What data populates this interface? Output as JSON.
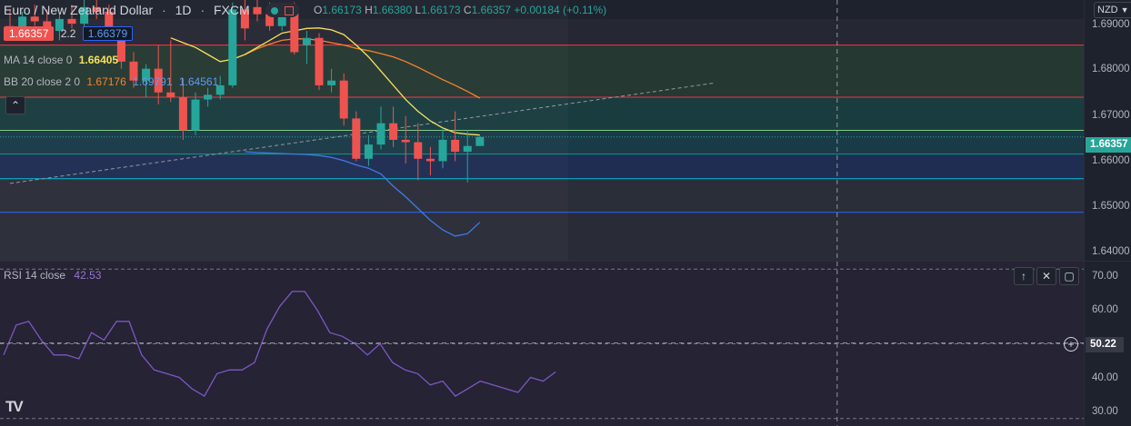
{
  "header": {
    "symbol": "Euro / New Zealand Dollar",
    "interval": "1D",
    "source": "FXCM",
    "ohlc": {
      "open_label": "O",
      "open": "1.66173",
      "high_label": "H",
      "high": "1.66380",
      "low_label": "L",
      "low": "1.66173",
      "close_label": "C",
      "close": "1.66357",
      "change": "+0.00184 (+0.11%)"
    },
    "sell_price": "1.66357",
    "spread": "2.2",
    "buy_price": "1.66379"
  },
  "indicators": {
    "ma": {
      "label": "MA 14 close 0",
      "value": "1.66405"
    },
    "bb": {
      "label": "BB 20 close 2 0",
      "basis": "1.67176",
      "upper": "1.69791",
      "lower": "1.64561"
    },
    "rsi": {
      "label": "RSI 14 close",
      "value": "42.53"
    }
  },
  "axis": {
    "currency": "NZD",
    "price_ticks": [
      "1.69000",
      "1.68000",
      "1.67000",
      "1.66000",
      "1.65000",
      "1.64000"
    ],
    "current_price": "1.66357",
    "rsi_ticks": [
      "70.00",
      "60.00",
      "40.00",
      "30.00"
    ],
    "crosshair_value": "50.22"
  },
  "colors": {
    "up": "#26a69a",
    "down": "#ef5350",
    "ma": "#f7e15b",
    "bb_basis": "#f5832a",
    "bb_lower": "#3c7be6",
    "rsi": "#7e57c2",
    "background": "#1e222d"
  },
  "chart_data": [
    {
      "type": "candlestick",
      "title": "Euro / New Zealand Dollar",
      "ylim": [
        1.6375,
        1.6925
      ],
      "candles": [
        {
          "o": 1.687,
          "h": 1.6905,
          "l": 1.6845,
          "c": 1.6855
        },
        {
          "o": 1.686,
          "h": 1.69,
          "l": 1.684,
          "c": 1.689
        },
        {
          "o": 1.689,
          "h": 1.6915,
          "l": 1.687,
          "c": 1.688
        },
        {
          "o": 1.688,
          "h": 1.6905,
          "l": 1.685,
          "c": 1.686
        },
        {
          "o": 1.686,
          "h": 1.6895,
          "l": 1.684,
          "c": 1.6885
        },
        {
          "o": 1.6885,
          "h": 1.6915,
          "l": 1.6865,
          "c": 1.6875
        },
        {
          "o": 1.6875,
          "h": 1.6925,
          "l": 1.686,
          "c": 1.691
        },
        {
          "o": 1.691,
          "h": 1.6925,
          "l": 1.6885,
          "c": 1.69
        },
        {
          "o": 1.69,
          "h": 1.6915,
          "l": 1.685,
          "c": 1.6865
        },
        {
          "o": 1.6865,
          "h": 1.687,
          "l": 1.678,
          "c": 1.6795
        },
        {
          "o": 1.6795,
          "h": 1.6815,
          "l": 1.674,
          "c": 1.6755
        },
        {
          "o": 1.6755,
          "h": 1.679,
          "l": 1.672,
          "c": 1.678
        },
        {
          "o": 1.678,
          "h": 1.683,
          "l": 1.6705,
          "c": 1.673
        },
        {
          "o": 1.673,
          "h": 1.684,
          "l": 1.671,
          "c": 1.672
        },
        {
          "o": 1.672,
          "h": 1.676,
          "l": 1.663,
          "c": 1.665
        },
        {
          "o": 1.665,
          "h": 1.673,
          "l": 1.664,
          "c": 1.6715
        },
        {
          "o": 1.6715,
          "h": 1.674,
          "l": 1.67,
          "c": 1.6725
        },
        {
          "o": 1.6725,
          "h": 1.6765,
          "l": 1.6715,
          "c": 1.6745
        },
        {
          "o": 1.6745,
          "h": 1.692,
          "l": 1.674,
          "c": 1.6905
        },
        {
          "o": 1.6905,
          "h": 1.6925,
          "l": 1.684,
          "c": 1.6865
        },
        {
          "o": 1.691,
          "h": 1.693,
          "l": 1.688,
          "c": 1.6895
        },
        {
          "o": 1.6895,
          "h": 1.692,
          "l": 1.686,
          "c": 1.687
        },
        {
          "o": 1.687,
          "h": 1.6915,
          "l": 1.686,
          "c": 1.691
        },
        {
          "o": 1.691,
          "h": 1.692,
          "l": 1.681,
          "c": 1.6815
        },
        {
          "o": 1.683,
          "h": 1.686,
          "l": 1.679,
          "c": 1.6845
        },
        {
          "o": 1.6845,
          "h": 1.6855,
          "l": 1.6735,
          "c": 1.6745
        },
        {
          "o": 1.6745,
          "h": 1.678,
          "l": 1.673,
          "c": 1.6755
        },
        {
          "o": 1.6755,
          "h": 1.677,
          "l": 1.666,
          "c": 1.6675
        },
        {
          "o": 1.6675,
          "h": 1.669,
          "l": 1.6585,
          "c": 1.659
        },
        {
          "o": 1.659,
          "h": 1.664,
          "l": 1.6575,
          "c": 1.662
        },
        {
          "o": 1.662,
          "h": 1.67,
          "l": 1.661,
          "c": 1.6665
        },
        {
          "o": 1.6665,
          "h": 1.67,
          "l": 1.6615,
          "c": 1.663
        },
        {
          "o": 1.663,
          "h": 1.668,
          "l": 1.658,
          "c": 1.6625
        },
        {
          "o": 1.6625,
          "h": 1.6665,
          "l": 1.6545,
          "c": 1.659
        },
        {
          "o": 1.659,
          "h": 1.6615,
          "l": 1.6555,
          "c": 1.6585
        },
        {
          "o": 1.6585,
          "h": 1.6655,
          "l": 1.657,
          "c": 1.663
        },
        {
          "o": 1.663,
          "h": 1.669,
          "l": 1.6585,
          "c": 1.6605
        },
        {
          "o": 1.6605,
          "h": 1.665,
          "l": 1.654,
          "c": 1.6617
        },
        {
          "o": 1.6617,
          "h": 1.6638,
          "l": 1.6617,
          "c": 1.6636
        }
      ],
      "ma": [
        null,
        null,
        null,
        null,
        null,
        null,
        null,
        null,
        null,
        null,
        null,
        null,
        null,
        1.6845,
        1.6835,
        1.6825,
        1.681,
        1.6795,
        1.68,
        1.681,
        1.6825,
        1.684,
        1.6855,
        1.686,
        1.6865,
        1.6866,
        1.6862,
        1.6852,
        1.683,
        1.6805,
        1.6775,
        1.6745,
        1.6715,
        1.669,
        1.667,
        1.6655,
        1.6645,
        1.6642,
        1.664
      ],
      "bb_basis": [
        null,
        null,
        null,
        null,
        null,
        null,
        null,
        null,
        null,
        null,
        null,
        null,
        null,
        null,
        null,
        null,
        null,
        null,
        null,
        1.681,
        1.6822,
        1.6832,
        1.684,
        1.6843,
        1.6843,
        1.684,
        1.6835,
        1.683,
        1.6823,
        1.6818,
        1.6812,
        1.6805,
        1.6795,
        1.6783,
        1.677,
        1.6757,
        1.6745,
        1.6732,
        1.6718
      ],
      "bb_lower": [
        null,
        null,
        null,
        null,
        null,
        null,
        null,
        null,
        null,
        null,
        null,
        null,
        null,
        null,
        null,
        null,
        null,
        null,
        null,
        1.6605,
        1.6603,
        1.6602,
        1.6601,
        1.66,
        1.6599,
        1.6597,
        1.6593,
        1.6586,
        1.6577,
        1.657,
        1.6558,
        1.6532,
        1.651,
        1.6485,
        1.646,
        1.644,
        1.6427,
        1.6432,
        1.6456
      ],
      "fib_levels": [
        1.683,
        1.672,
        1.665,
        1.66,
        1.6548,
        1.6477
      ],
      "trendline": {
        "from": {
          "i": 0,
          "price": 1.6538
        },
        "to": {
          "i": 57,
          "price": 1.675
        }
      },
      "crosshair_index": 43
    },
    {
      "type": "line",
      "title": "RSI 14 close",
      "ylim": [
        28,
        72
      ],
      "levels": [
        70,
        50,
        30
      ],
      "values": [
        47,
        55,
        56,
        51,
        47,
        47,
        46,
        53,
        51,
        56,
        56,
        47,
        43,
        42,
        41,
        38,
        36,
        42,
        43,
        43,
        45,
        54,
        60,
        64,
        64,
        59,
        53,
        52,
        50,
        47,
        50,
        45,
        43,
        42,
        39,
        40,
        36,
        38,
        40,
        39,
        38,
        37,
        41,
        40,
        42.5
      ]
    }
  ]
}
